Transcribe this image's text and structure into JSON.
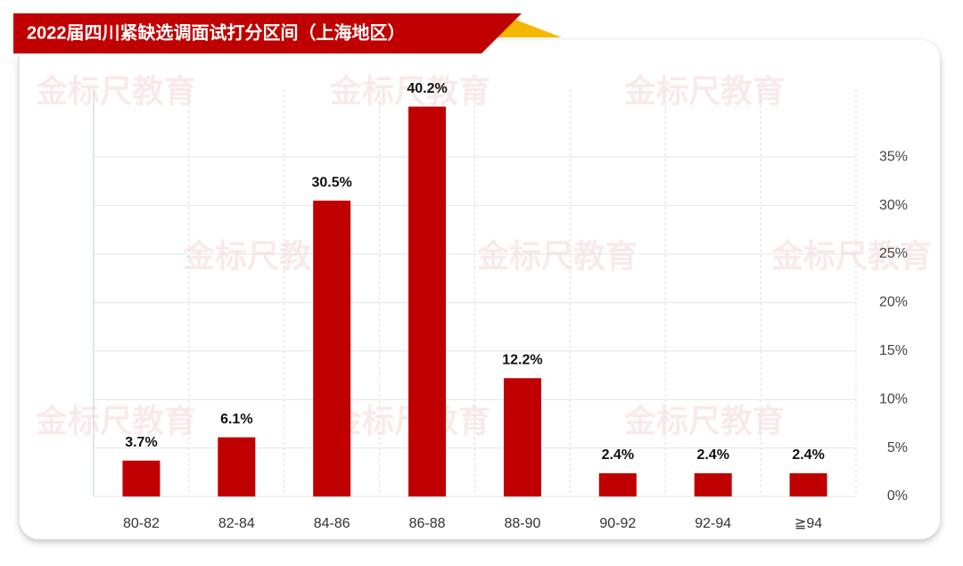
{
  "chart_data": {
    "type": "bar",
    "title": "2022届四川紧缺选调面试打分区间（上海地区）",
    "watermark": "金标尺教育",
    "categories": [
      "80-82",
      "82-84",
      "84-86",
      "86-88",
      "88-90",
      "90-92",
      "92-94",
      "≧94"
    ],
    "values": [
      3.7,
      6.1,
      30.5,
      40.2,
      12.2,
      2.4,
      2.4,
      2.4
    ],
    "value_labels": [
      "3.7%",
      "6.1%",
      "30.5%",
      "40.2%",
      "12.2%",
      "2.4%",
      "2.4%",
      "2.4%"
    ],
    "color": "#c00000",
    "ylim": [
      0,
      42
    ],
    "yticks": [
      {
        "value": 0,
        "label": "0%"
      },
      {
        "value": 5,
        "label": "5%"
      },
      {
        "value": 10,
        "label": "10%"
      },
      {
        "value": 15,
        "label": "15%"
      },
      {
        "value": 20,
        "label": "20%"
      },
      {
        "value": 25,
        "label": "25%"
      },
      {
        "value": 30,
        "label": "30%"
      },
      {
        "value": 35,
        "label": "35%"
      }
    ],
    "y_axis_side": "right",
    "grid": true
  }
}
